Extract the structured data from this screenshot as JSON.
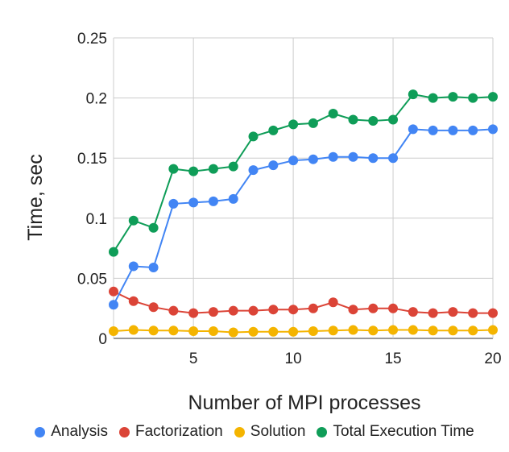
{
  "chart_data": {
    "type": "line",
    "xlabel": "Number of MPI processes",
    "ylabel": "Time, sec",
    "xlim": [
      1,
      20
    ],
    "ylim": [
      0,
      0.25
    ],
    "x_ticks": [
      5,
      10,
      15,
      20
    ],
    "y_ticks": [
      0,
      0.05,
      0.1,
      0.15,
      0.2,
      0.25
    ],
    "y_tick_labels": [
      "0",
      "0.05",
      "0.1",
      "0.15",
      "0.2",
      "0.25"
    ],
    "grid": true,
    "legend_position": "bottom",
    "x": [
      1,
      2,
      3,
      4,
      5,
      6,
      7,
      8,
      9,
      10,
      11,
      12,
      13,
      14,
      15,
      16,
      17,
      18,
      19,
      20
    ],
    "series": [
      {
        "name": "Analysis",
        "color": "#4285f4",
        "values": [
          0.028,
          0.06,
          0.059,
          0.112,
          0.113,
          0.114,
          0.116,
          0.14,
          0.144,
          0.148,
          0.149,
          0.151,
          0.151,
          0.15,
          0.15,
          0.174,
          0.173,
          0.173,
          0.173,
          0.174
        ]
      },
      {
        "name": "Factorization",
        "color": "#db4437",
        "values": [
          0.039,
          0.031,
          0.026,
          0.023,
          0.021,
          0.022,
          0.023,
          0.023,
          0.024,
          0.024,
          0.025,
          0.03,
          0.024,
          0.025,
          0.025,
          0.022,
          0.021,
          0.022,
          0.021,
          0.021
        ]
      },
      {
        "name": "Solution",
        "color": "#f4b400",
        "values": [
          0.006,
          0.007,
          0.0065,
          0.0065,
          0.006,
          0.006,
          0.005,
          0.0055,
          0.0055,
          0.0055,
          0.006,
          0.0065,
          0.007,
          0.0065,
          0.007,
          0.007,
          0.0065,
          0.0065,
          0.0065,
          0.007
        ]
      },
      {
        "name": "Total Execution Time",
        "color": "#0f9d58",
        "values": [
          0.072,
          0.098,
          0.092,
          0.141,
          0.139,
          0.141,
          0.143,
          0.168,
          0.173,
          0.178,
          0.179,
          0.187,
          0.182,
          0.181,
          0.182,
          0.203,
          0.2,
          0.201,
          0.2,
          0.201
        ]
      }
    ]
  }
}
